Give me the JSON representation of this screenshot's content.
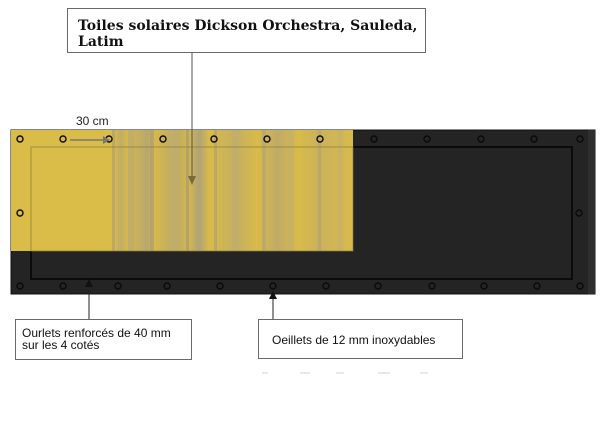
{
  "title": "Toiles solaires Dickson Orchestra, Sauleda, Latim",
  "dimension_label": "30 cm",
  "callouts": {
    "hems_line1": "Ourlets renforcés de 40 mm",
    "hems_line2": "sur les 4 cotés",
    "eyelets": "Oeillets de 12 mm inoxydables"
  },
  "colors": {
    "panel": "#242424",
    "fabric": "#e2c248",
    "hem_line": "#0b0b0b",
    "eyelet": "#6b6b6b"
  }
}
